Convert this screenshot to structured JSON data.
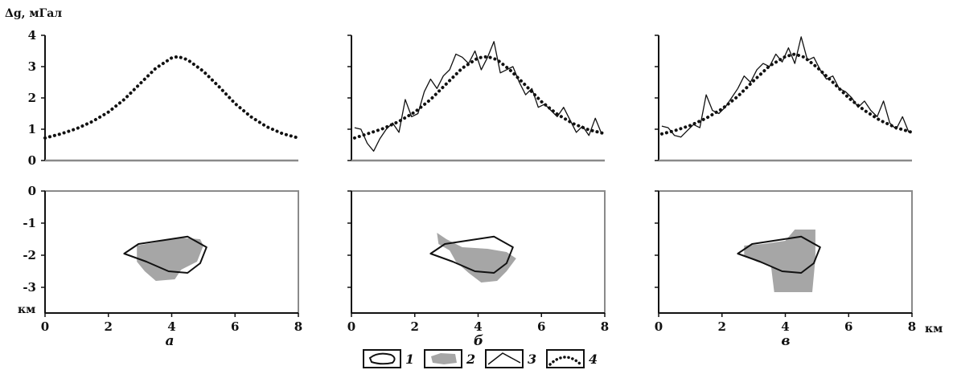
{
  "chart_data": [
    {
      "type": "line",
      "panel": "а",
      "ylabel": "Δg, мГал",
      "ylim": [
        0,
        4
      ],
      "xlim": [
        0,
        8
      ],
      "yticks": [
        "0",
        "1",
        "2",
        "3",
        "4"
      ],
      "series": [
        {
          "legend": "4",
          "style": "dotted",
          "x": [
            0,
            0.5,
            1,
            1.5,
            2,
            2.5,
            3,
            3.5,
            4,
            4.2,
            4.5,
            5,
            5.5,
            6,
            6.5,
            7,
            7.5,
            8
          ],
          "y": [
            0.72,
            0.85,
            1.02,
            1.25,
            1.55,
            1.95,
            2.45,
            2.95,
            3.28,
            3.32,
            3.22,
            2.85,
            2.35,
            1.82,
            1.4,
            1.08,
            0.86,
            0.72
          ]
        }
      ]
    },
    {
      "type": "line",
      "panel": "б",
      "ylim": [
        0,
        4
      ],
      "xlim": [
        0,
        8
      ],
      "series": [
        {
          "legend": "3",
          "style": "solid",
          "x": [
            0.1,
            0.3,
            0.5,
            0.7,
            0.9,
            1.1,
            1.3,
            1.5,
            1.7,
            1.9,
            2.1,
            2.3,
            2.5,
            2.7,
            2.9,
            3.1,
            3.3,
            3.5,
            3.7,
            3.9,
            4.1,
            4.3,
            4.5,
            4.7,
            4.9,
            5.1,
            5.3,
            5.5,
            5.7,
            5.9,
            6.1,
            6.3,
            6.5,
            6.7,
            6.9,
            7.1,
            7.3,
            7.5,
            7.7,
            7.9
          ],
          "y": [
            1.05,
            1.0,
            0.55,
            0.3,
            0.7,
            1.0,
            1.2,
            0.9,
            1.95,
            1.4,
            1.5,
            2.2,
            2.6,
            2.3,
            2.7,
            2.9,
            3.4,
            3.3,
            3.1,
            3.5,
            2.9,
            3.3,
            3.8,
            2.8,
            2.9,
            3.0,
            2.5,
            2.1,
            2.3,
            1.7,
            1.8,
            1.6,
            1.4,
            1.7,
            1.3,
            0.9,
            1.1,
            0.8,
            1.35,
            0.85
          ]
        },
        {
          "legend": "4",
          "style": "dotted",
          "x": [
            0.1,
            0.5,
            1,
            1.5,
            2,
            2.5,
            3,
            3.5,
            4,
            4.3,
            4.6,
            5,
            5.5,
            6,
            6.5,
            7,
            7.5,
            8
          ],
          "y": [
            0.72,
            0.85,
            1.02,
            1.25,
            1.55,
            1.95,
            2.45,
            2.95,
            3.28,
            3.32,
            3.22,
            2.9,
            2.4,
            1.88,
            1.48,
            1.18,
            0.98,
            0.86
          ]
        }
      ]
    },
    {
      "type": "line",
      "panel": "в",
      "ylim": [
        0,
        4
      ],
      "xlim": [
        0,
        8
      ],
      "series": [
        {
          "legend": "3",
          "style": "solid",
          "x": [
            0.1,
            0.3,
            0.5,
            0.7,
            0.9,
            1.1,
            1.3,
            1.5,
            1.7,
            1.9,
            2.1,
            2.3,
            2.5,
            2.7,
            2.9,
            3.1,
            3.3,
            3.5,
            3.7,
            3.9,
            4.1,
            4.3,
            4.5,
            4.7,
            4.9,
            5.1,
            5.3,
            5.5,
            5.7,
            5.9,
            6.1,
            6.3,
            6.5,
            6.7,
            6.9,
            7.1,
            7.3,
            7.5,
            7.7,
            7.9
          ],
          "y": [
            1.1,
            1.05,
            0.8,
            0.75,
            0.95,
            1.15,
            1.05,
            2.1,
            1.6,
            1.5,
            1.7,
            2.0,
            2.3,
            2.7,
            2.5,
            2.9,
            3.1,
            3.0,
            3.4,
            3.15,
            3.6,
            3.1,
            3.95,
            3.2,
            3.3,
            2.9,
            2.6,
            2.7,
            2.3,
            2.2,
            2.0,
            1.7,
            1.9,
            1.6,
            1.4,
            1.9,
            1.2,
            1.0,
            1.4,
            0.9
          ]
        },
        {
          "legend": "4",
          "style": "dotted",
          "x": [
            0.1,
            0.5,
            1,
            1.5,
            2,
            2.5,
            3,
            3.5,
            4,
            4.3,
            4.6,
            5,
            5.5,
            6,
            6.5,
            7,
            7.5,
            8
          ],
          "y": [
            0.85,
            0.95,
            1.12,
            1.35,
            1.65,
            2.05,
            2.55,
            3.02,
            3.32,
            3.4,
            3.3,
            2.98,
            2.5,
            2.0,
            1.6,
            1.28,
            1.05,
            0.9
          ]
        }
      ]
    },
    {
      "type": "section",
      "panel": "а",
      "ylabel": "км",
      "ylim": [
        -3.8,
        0
      ],
      "xlim": [
        0,
        8
      ],
      "yticks": [
        "0",
        "-1",
        "-2",
        "-3"
      ],
      "xticks": [
        "0",
        "2",
        "4",
        "6",
        "8"
      ],
      "xlabel": "а",
      "model_body": [
        [
          2.5,
          -1.95
        ],
        [
          2.95,
          -1.65
        ],
        [
          4.5,
          -1.42
        ],
        [
          5.1,
          -1.75
        ],
        [
          4.9,
          -2.25
        ],
        [
          4.5,
          -2.55
        ],
        [
          3.9,
          -2.5
        ],
        [
          3.2,
          -2.2
        ]
      ],
      "solution": [
        [
          2.9,
          -1.7
        ],
        [
          3.5,
          -1.6
        ],
        [
          4.2,
          -1.45
        ],
        [
          4.9,
          -1.5
        ],
        [
          5.0,
          -1.7
        ],
        [
          4.8,
          -2.2
        ],
        [
          4.3,
          -2.45
        ],
        [
          4.1,
          -2.75
        ],
        [
          3.5,
          -2.8
        ],
        [
          3.15,
          -2.5
        ],
        [
          2.9,
          -2.2
        ]
      ]
    },
    {
      "type": "section",
      "panel": "б",
      "ylim": [
        -3.8,
        0
      ],
      "xlim": [
        0,
        8
      ],
      "xticks": [
        "0",
        "2",
        "4",
        "6",
        "8"
      ],
      "xlabel": "б",
      "model_body": [
        [
          2.5,
          -1.95
        ],
        [
          2.95,
          -1.65
        ],
        [
          4.5,
          -1.42
        ],
        [
          5.1,
          -1.75
        ],
        [
          4.9,
          -2.25
        ],
        [
          4.5,
          -2.55
        ],
        [
          3.9,
          -2.5
        ],
        [
          3.2,
          -2.2
        ]
      ],
      "solution": [
        [
          2.7,
          -1.3
        ],
        [
          3.0,
          -1.5
        ],
        [
          3.5,
          -1.75
        ],
        [
          4.3,
          -1.8
        ],
        [
          4.9,
          -1.9
        ],
        [
          5.2,
          -2.1
        ],
        [
          4.9,
          -2.5
        ],
        [
          4.6,
          -2.8
        ],
        [
          4.1,
          -2.85
        ],
        [
          3.7,
          -2.55
        ],
        [
          3.3,
          -2.2
        ],
        [
          3.1,
          -1.85
        ],
        [
          2.75,
          -1.65
        ]
      ]
    },
    {
      "type": "section",
      "panel": "в",
      "ylim": [
        -3.8,
        0
      ],
      "xlim": [
        0,
        8
      ],
      "xticks": [
        "0",
        "2",
        "4",
        "6",
        "8"
      ],
      "xlabel": "в",
      "model_body": [
        [
          2.5,
          -1.95
        ],
        [
          2.95,
          -1.65
        ],
        [
          4.5,
          -1.42
        ],
        [
          5.1,
          -1.75
        ],
        [
          4.9,
          -2.25
        ],
        [
          4.5,
          -2.55
        ],
        [
          3.9,
          -2.5
        ],
        [
          3.2,
          -2.2
        ]
      ],
      "solution": [
        [
          2.7,
          -1.7
        ],
        [
          3.3,
          -1.65
        ],
        [
          4.0,
          -1.55
        ],
        [
          4.3,
          -1.2
        ],
        [
          4.95,
          -1.2
        ],
        [
          4.95,
          -2.1
        ],
        [
          4.85,
          -3.15
        ],
        [
          3.65,
          -3.15
        ],
        [
          3.55,
          -2.35
        ],
        [
          3.1,
          -2.2
        ],
        [
          2.7,
          -2.0
        ]
      ]
    }
  ],
  "x_unit": "км",
  "legend": {
    "items": [
      {
        "num": "1",
        "kind": "outline"
      },
      {
        "num": "2",
        "kind": "fill"
      },
      {
        "num": "3",
        "kind": "solid-line"
      },
      {
        "num": "4",
        "kind": "dotted-line"
      }
    ]
  },
  "colors": {
    "ink": "#111111",
    "fill": "#a6a6a6",
    "frame": "#8a8a8a"
  }
}
